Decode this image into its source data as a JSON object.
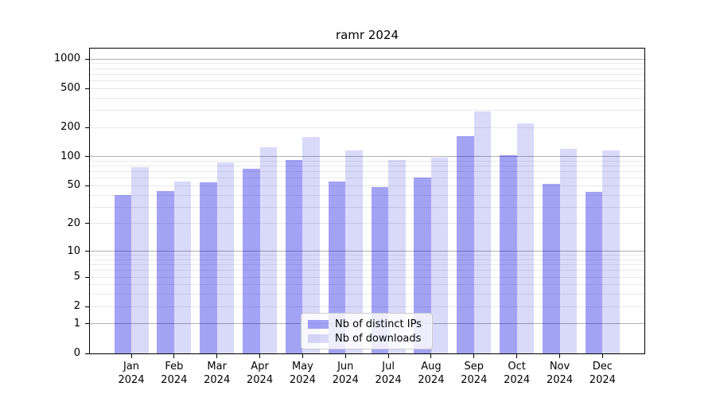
{
  "chart_data": {
    "type": "bar",
    "title": "ramr 2024",
    "year_label": "2024",
    "categories": [
      "Jan",
      "Feb",
      "Mar",
      "Apr",
      "May",
      "Jun",
      "Jul",
      "Aug",
      "Sep",
      "Oct",
      "Nov",
      "Dec"
    ],
    "series": [
      {
        "name": "Nb of distinct IPs",
        "color": "rgba(0,0,230,0.36)",
        "values": [
          40,
          44,
          54,
          75,
          92,
          55,
          49,
          61,
          163,
          104,
          52,
          43
        ]
      },
      {
        "name": "Nb of downloads",
        "color": "rgba(0,0,215,0.15)",
        "values": [
          78,
          56,
          88,
          124,
          159,
          115,
          93,
          98,
          291,
          219,
          120,
          115
        ]
      }
    ],
    "yticks": [
      1000,
      500,
      200,
      100,
      50,
      20,
      10,
      5,
      2,
      1,
      0
    ],
    "grid_major": [
      1,
      10,
      100,
      1000
    ],
    "grid_minor": [
      2,
      3,
      4,
      5,
      6,
      7,
      8,
      9,
      20,
      30,
      40,
      50,
      60,
      70,
      80,
      90,
      200,
      300,
      400,
      500,
      600,
      700,
      800,
      900
    ],
    "ylim": [
      0,
      1277
    ],
    "scale": "log1p",
    "xlabel": "",
    "ylabel": "",
    "grid": "on",
    "legend_position": "lower-center",
    "colors": {
      "grid_major": "#b0b0b0",
      "grid_minor": "#e9e9e9",
      "spine": "#000000",
      "text": "#000000"
    }
  }
}
